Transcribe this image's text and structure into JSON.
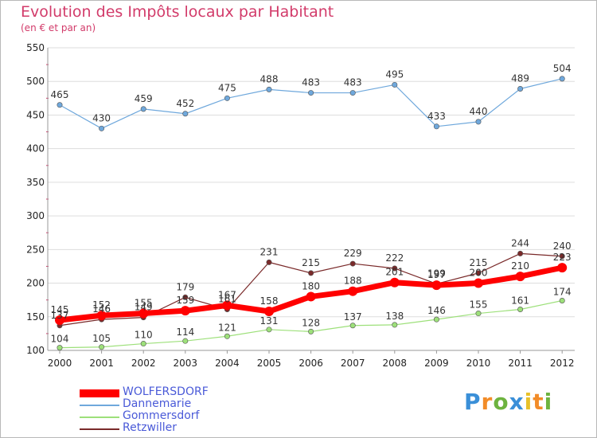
{
  "title": "Evolution des Impôts locaux par Habitant",
  "subtitle": "(en € et par an)",
  "logo": "Proxiti",
  "chart_data": {
    "type": "line",
    "x": [
      "2000",
      "2001",
      "2002",
      "2003",
      "2004",
      "2005",
      "2006",
      "2007",
      "2008",
      "2009",
      "2010",
      "2011",
      "2012"
    ],
    "ylim": [
      100,
      550
    ],
    "yticks": [
      "100",
      "150",
      "200",
      "250",
      "300",
      "350",
      "400",
      "450",
      "500",
      "550"
    ],
    "grid": "horizontal",
    "legend_position": "bottom-left",
    "series": [
      {
        "name": "WOLFERSDORF",
        "color": "#ff0000",
        "values": [
          145,
          152,
          155,
          159,
          167,
          158,
          180,
          188,
          201,
          197,
          200,
          210,
          223
        ]
      },
      {
        "name": "Dannemarie",
        "color": "#6fa8dc",
        "values": [
          465,
          430,
          459,
          452,
          475,
          488,
          483,
          483,
          495,
          433,
          440,
          489,
          504
        ]
      },
      {
        "name": "Gommersdorf",
        "color": "#9de07a",
        "values": [
          104,
          105,
          110,
          114,
          121,
          131,
          128,
          137,
          138,
          146,
          155,
          161,
          174
        ]
      },
      {
        "name": "Retzwiller",
        "color": "#7a2a2a",
        "values": [
          137,
          146,
          149,
          179,
          161,
          231,
          215,
          229,
          222,
          199,
          215,
          244,
          240
        ]
      }
    ]
  }
}
